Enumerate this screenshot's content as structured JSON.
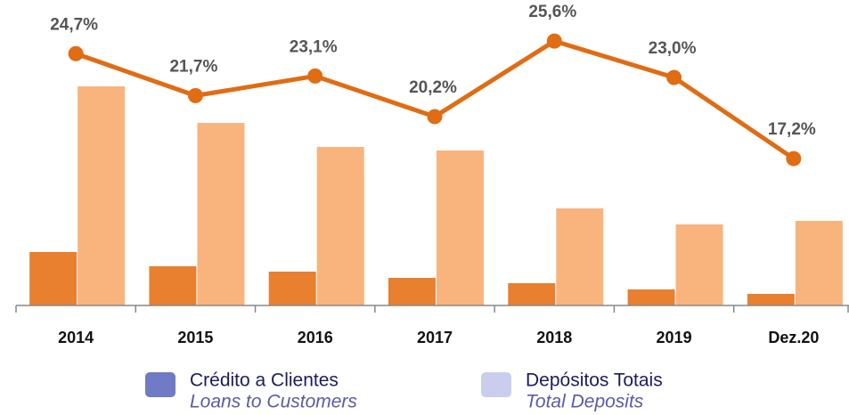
{
  "chart_data": {
    "type": "bar_line",
    "categories": [
      "2014",
      "2015",
      "2016",
      "2017",
      "2018",
      "2019",
      "Dez.20"
    ],
    "series": [
      {
        "name": "Crédito a Clientes",
        "name_en": "Loans to Customers",
        "color": "#e8802f",
        "legend_color": "#6f7bc4",
        "values": [
          60,
          44,
          38,
          31,
          25,
          18,
          13
        ]
      },
      {
        "name": "Depósitos Totais",
        "name_en": "Total Deposits",
        "color": "#f9b47e",
        "legend_color": "#cbcdef",
        "values": [
          246,
          205,
          178,
          174,
          109,
          91,
          95
        ]
      },
      {
        "type": "line",
        "axis": "y2",
        "color": "#e06c14",
        "values": [
          24.7,
          21.7,
          23.1,
          20.2,
          25.6,
          23.0,
          17.2
        ],
        "value_labels": [
          "24,7%",
          "21,7%",
          "23,1%",
          "20,2%",
          "25,6%",
          "23,0%",
          "17,2%"
        ]
      }
    ],
    "ylim": [
      0,
      300
    ],
    "y2lim": [
      6.7,
      25.8
    ]
  }
}
